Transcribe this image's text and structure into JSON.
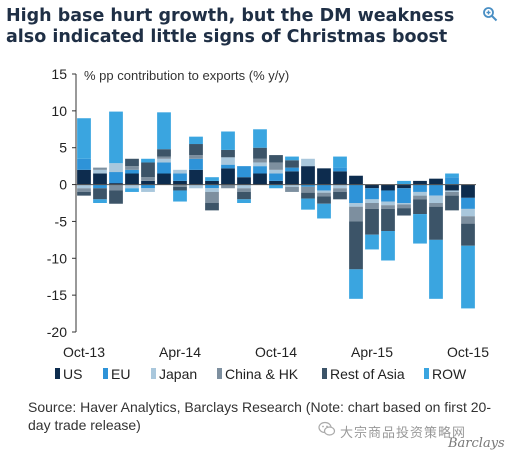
{
  "headline": "High base hurt growth, but the DM weakness also indicated little signs of Christmas boost",
  "source": "Source: Haver Analytics, Barclays Research (Note: chart based on first 20-day trade release)",
  "brand": {
    "watermark": "大宗商品投资策略网",
    "name": "Barclays"
  },
  "icons": {
    "zoom": "magnifier-plus-icon",
    "watermark": "wechat-icon"
  },
  "chart_data": {
    "type": "bar",
    "stacked": true,
    "ylabel": "% pp contribution to exports (% y/y)",
    "ylim": [
      -20,
      15
    ],
    "yticks": [
      -20,
      -15,
      -10,
      -5,
      0,
      5,
      10,
      15
    ],
    "xtick_labels": [
      "Oct-13",
      "Apr-14",
      "Oct-14",
      "Apr-15",
      "Oct-15"
    ],
    "xtick_index": [
      0,
      6,
      12,
      18,
      24
    ],
    "n_periods": 25,
    "legend_position": "bottom",
    "series": [
      {
        "name": "US",
        "color": "#0d2c4e",
        "values": [
          2.0,
          1.5,
          0.2,
          1.5,
          0.5,
          1.5,
          0.5,
          2.0,
          0.5,
          2.2,
          1.0,
          1.5,
          0.5,
          1.8,
          2.5,
          2.2,
          1.8,
          1.2,
          -0.5,
          -0.8,
          -0.5,
          0.5,
          0.8,
          -0.8,
          -1.8
        ]
      },
      {
        "name": "EU",
        "color": "#2e93d8",
        "values": [
          1.5,
          -0.5,
          1.5,
          0.5,
          -0.5,
          1.5,
          1.0,
          1.5,
          -0.5,
          0.5,
          1.5,
          1.0,
          1.0,
          0.5,
          -0.3,
          -0.8,
          0.5,
          -2.5,
          -1.5,
          -1.5,
          -2.0,
          -1.0,
          -1.5,
          1.0,
          -1.5
        ]
      },
      {
        "name": "Japan",
        "color": "#a9c7dc",
        "values": [
          -0.5,
          0.5,
          1.2,
          -0.5,
          -0.5,
          0.5,
          0.5,
          -0.5,
          -0.5,
          1.0,
          -0.5,
          0.5,
          0.5,
          -0.3,
          1.0,
          -0.3,
          -0.5,
          -0.5,
          -0.5,
          -0.5,
          -0.2,
          -0.5,
          -1.0,
          -0.2,
          -1.0
        ]
      },
      {
        "name": "China & HK",
        "color": "#7d8f9f",
        "values": [
          -0.5,
          0.3,
          -0.8,
          0.5,
          0.5,
          0.3,
          -0.3,
          0.5,
          -1.5,
          -0.5,
          -0.5,
          0.5,
          1.0,
          -0.7,
          -0.8,
          -0.5,
          -0.5,
          -2.0,
          -0.8,
          -0.5,
          -0.5,
          -0.5,
          -0.5,
          -0.5,
          -1.0
        ]
      },
      {
        "name": "Rest of Asia",
        "color": "#3c5468",
        "values": [
          -0.5,
          -1.5,
          -1.8,
          1.0,
          2.0,
          1.0,
          -0.5,
          1.5,
          -1.0,
          1.0,
          -1.0,
          1.5,
          1.0,
          1.0,
          -0.8,
          -1.0,
          -1.0,
          -6.5,
          -3.5,
          -3.0,
          -1.0,
          -2.0,
          -4.5,
          -2.0,
          -3.0
        ]
      },
      {
        "name": "ROW",
        "color": "#3aa5e0",
        "values": [
          5.5,
          -0.5,
          7.0,
          -0.5,
          0.5,
          5.0,
          -1.5,
          1.0,
          0.5,
          2.5,
          -0.5,
          2.5,
          -0.5,
          0.5,
          -1.5,
          -2.0,
          1.5,
          -4.0,
          -2.0,
          -4.0,
          0.5,
          -4.0,
          -8.0,
          0.5,
          -8.5
        ]
      }
    ]
  }
}
